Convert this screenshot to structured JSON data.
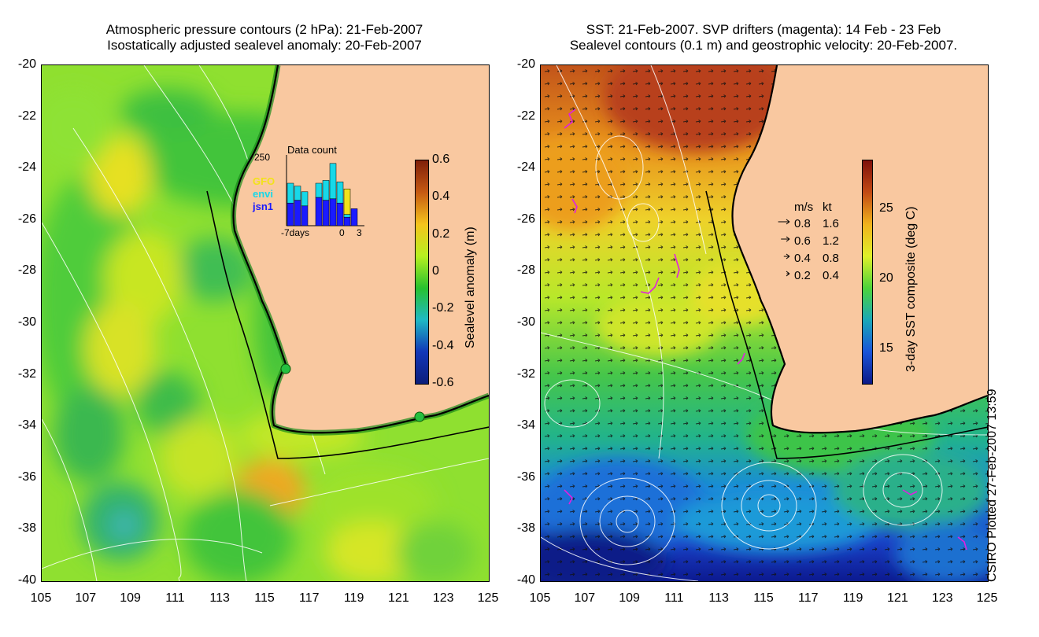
{
  "left_panel": {
    "title_line1": "Atmospheric pressure contours (2 hPa): 21-Feb-2007",
    "title_line2": "Isostatically adjusted sealevel anomaly: 20-Feb-2007",
    "colorbar": {
      "label": "Sealevel anomaly (m)",
      "ticks": [
        "0.6",
        "0.4",
        "0.2",
        "0",
        "-0.2",
        "-0.4",
        "-0.6"
      ],
      "range": [
        -0.6,
        0.6
      ],
      "colors": [
        "#7f1f0a",
        "#c65a12",
        "#f5c41c",
        "#b7f020",
        "#27c12e",
        "#1fb9c4",
        "#1237b8",
        "#0c1e7a"
      ]
    },
    "data_count": {
      "title": "Data count",
      "ymax_label": "250",
      "x_start_label": "-7days",
      "x_zero_label": "0",
      "x_end_label": "3",
      "legend": [
        {
          "name": "GFO",
          "color": "#f2e21a"
        },
        {
          "name": "envi",
          "color": "#18d8e8"
        },
        {
          "name": "jsn1",
          "color": "#1a1aff"
        }
      ],
      "bars": [
        {
          "jsn1": 80,
          "envi": 70,
          "gfo": 0
        },
        {
          "jsn1": 90,
          "envi": 50,
          "gfo": 0
        },
        {
          "jsn1": 70,
          "envi": 50,
          "gfo": 0
        },
        {
          "jsn1": 0,
          "envi": 0,
          "gfo": 0
        },
        {
          "jsn1": 100,
          "envi": 50,
          "gfo": 0
        },
        {
          "jsn1": 90,
          "envi": 70,
          "gfo": 0
        },
        {
          "jsn1": 95,
          "envi": 125,
          "gfo": 0
        },
        {
          "jsn1": 80,
          "envi": 75,
          "gfo": 0
        },
        {
          "jsn1": 30,
          "envi": 10,
          "gfo": 90
        },
        {
          "jsn1": 60,
          "envi": 0,
          "gfo": 0
        }
      ]
    }
  },
  "right_panel": {
    "title_line1": "SST: 21-Feb-2007. SVP drifters (magenta): 14 Feb - 23 Feb",
    "title_line2": "Sealevel contours (0.1 m) and geostrophic velocity: 20-Feb-2007.",
    "colorbar": {
      "label": "3-day SST composite (deg C)",
      "ticks": [
        "25",
        "20",
        "15"
      ],
      "range": [
        12.5,
        28.5
      ],
      "colors": [
        "#7f0f0a",
        "#c24a14",
        "#f0b21c",
        "#dff02a",
        "#4ed43a",
        "#1aa8b8",
        "#1a54d8",
        "#0c1a88"
      ]
    },
    "velocity_legend": {
      "header_ms": "m/s",
      "header_kt": "kt",
      "rows": [
        {
          "ms": "0.8",
          "kt": "1.6"
        },
        {
          "ms": "0.6",
          "kt": "1.2"
        },
        {
          "ms": "0.4",
          "kt": "0.8"
        },
        {
          "ms": "0.2",
          "kt": "0.4"
        }
      ]
    }
  },
  "axes": {
    "y_ticks": [
      "-20",
      "-22",
      "-24",
      "-26",
      "-28",
      "-30",
      "-32",
      "-34",
      "-36",
      "-38",
      "-40"
    ],
    "x_ticks": [
      "105",
      "107",
      "109",
      "111",
      "113",
      "115",
      "117",
      "119",
      "121",
      "123",
      "125"
    ],
    "lon_range": [
      105,
      125
    ],
    "lat_range": [
      -20,
      -40
    ]
  },
  "footer": {
    "plotted": "CSIRO Plotted 27-Feb-2007 13:59"
  },
  "colors": {
    "land": "#f9c8a0",
    "coastline": "#000000",
    "contour": "#ffffff",
    "drifter": "#e020e0",
    "mooring": "#25c040"
  }
}
